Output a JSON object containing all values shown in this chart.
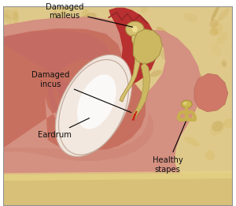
{
  "background_color": "#e8d5a3",
  "labels": {
    "damaged_malleus": "Damaged\nmalleus",
    "damaged_incus": "Damaged\nincus",
    "eardrum": "Eardrum",
    "healthy_stapes": "Healthy\nstapes"
  },
  "colors": {
    "bone_bg": "#e8d5a3",
    "bone_dark": "#c8aa6a",
    "outer_skin": "#e8a898",
    "outer_skin_edge": "#d09080",
    "canal_pink": "#d98878",
    "canal_inner": "#c87060",
    "middle_ear_red": "#c04040",
    "middle_ear_dark": "#a83030",
    "inner_ear_pink": "#e09888",
    "eardrum_white": "#f5ede8",
    "eardrum_shine": "#ffffff",
    "ossicle": "#d4c07a",
    "ossicle_light": "#e8d898",
    "ossicle_dark": "#b09050",
    "damage_red": "#cc3030",
    "stapes_fill": "#c8b060",
    "text_color": "#000000"
  },
  "figsize": [
    3.0,
    2.61
  ],
  "dpi": 100
}
